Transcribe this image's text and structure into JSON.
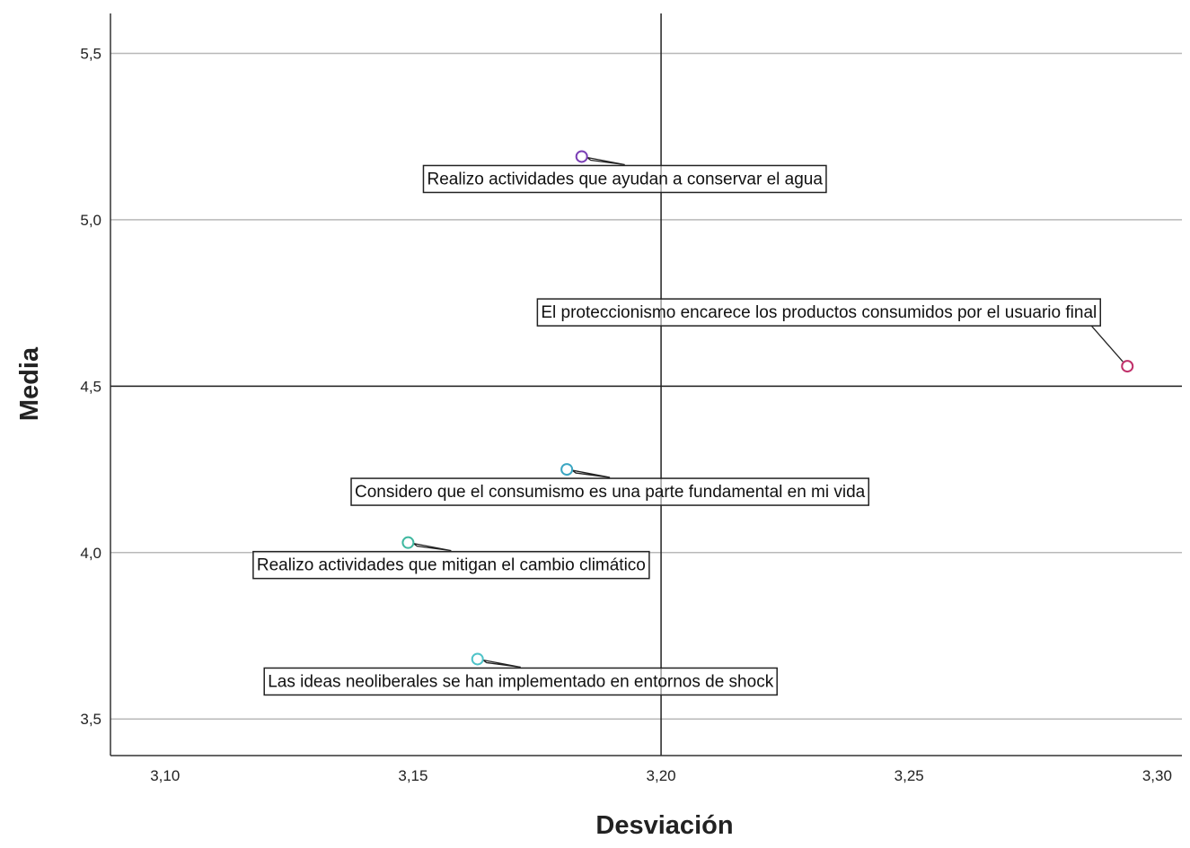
{
  "chart_data": {
    "type": "scatter",
    "title": "",
    "xlabel": "Desviación",
    "ylabel": "Media",
    "xlim": [
      3.089,
      3.305
    ],
    "ylim": [
      3.39,
      5.62
    ],
    "x_ticks": [
      {
        "value": 3.1,
        "label": "3,10"
      },
      {
        "value": 3.15,
        "label": "3,15"
      },
      {
        "value": 3.2,
        "label": "3,20"
      },
      {
        "value": 3.25,
        "label": "3,25"
      },
      {
        "value": 3.3,
        "label": "3,30"
      }
    ],
    "y_ticks": [
      {
        "value": 3.5,
        "label": "3,5"
      },
      {
        "value": 4.0,
        "label": "4,0"
      },
      {
        "value": 4.5,
        "label": "4,5"
      },
      {
        "value": 5.0,
        "label": "5,0"
      },
      {
        "value": 5.5,
        "label": "5,5"
      }
    ],
    "grid": "horizontal",
    "reference_lines": {
      "x": 3.2,
      "y": 4.5
    },
    "points": [
      {
        "label": "Realizo actividades que ayudan a conservar el agua",
        "x": 3.184,
        "y": 5.19,
        "color": "#7b3fb5",
        "label_side": "below"
      },
      {
        "label": "El proteccionismo encarece los productos consumidos por el usuario final",
        "x": 3.294,
        "y": 4.56,
        "color": "#c0306a",
        "label_side": "above"
      },
      {
        "label": "Considero que el consumismo es una parte fundamental en mi vida",
        "x": 3.181,
        "y": 4.25,
        "color": "#3aa6c2",
        "label_side": "below"
      },
      {
        "label": "Realizo actividades que mitigan el cambio climático",
        "x": 3.149,
        "y": 4.03,
        "color": "#3fb8a0",
        "label_side": "below"
      },
      {
        "label": "Las ideas neoliberales se han implementado en entornos de shock",
        "x": 3.163,
        "y": 3.68,
        "color": "#4ec3c8",
        "label_side": "below"
      }
    ]
  }
}
